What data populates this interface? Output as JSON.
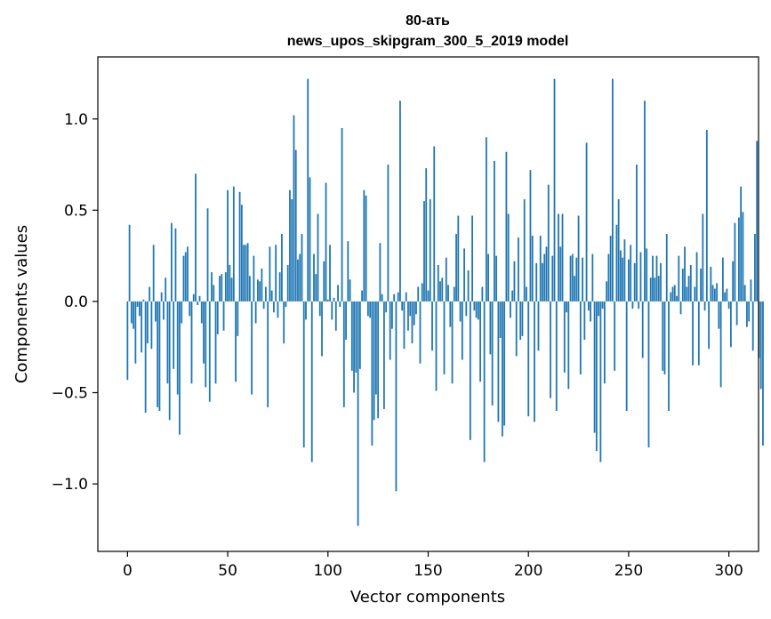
{
  "chart_data": {
    "type": "bar",
    "title_line1": "80-ать",
    "title_line2": "news_upos_skipgram_300_5_2019 model",
    "xlabel": "Vector components",
    "ylabel": "Components values",
    "xlim": [
      -14.8,
      314.8
    ],
    "ylim": [
      -1.37,
      1.34
    ],
    "x_ticks": [
      0,
      50,
      100,
      150,
      200,
      250,
      300
    ],
    "x_tick_labels": [
      "0",
      "50",
      "100",
      "150",
      "200",
      "250",
      "300"
    ],
    "y_ticks": [
      -1.0,
      -0.5,
      0.0,
      0.5,
      1.0
    ],
    "y_tick_labels": [
      "−1.0",
      "−0.5",
      "0.0",
      "0.5",
      "1.0"
    ],
    "bar_color": "#1f77b4",
    "grid": false,
    "values": [
      -0.43,
      0.42,
      -0.12,
      -0.15,
      -0.34,
      -0.03,
      -0.08,
      -0.28,
      0.01,
      -0.61,
      -0.23,
      0.08,
      -0.26,
      0.31,
      -0.11,
      -0.58,
      -0.6,
      0.05,
      -0.1,
      0.13,
      -0.45,
      -0.65,
      0.43,
      -0.37,
      0.4,
      -0.51,
      -0.73,
      -0.12,
      0.25,
      0.27,
      0.3,
      -0.08,
      -0.45,
      0.04,
      0.7,
      -0.02,
      0.03,
      -0.12,
      -0.34,
      -0.47,
      0.51,
      -0.55,
      0.16,
      0.09,
      -0.45,
      -0.18,
      0.14,
      0.15,
      -0.16,
      0.16,
      0.61,
      0.2,
      0.13,
      0.63,
      -0.44,
      -0.19,
      0.6,
      0.53,
      0.31,
      0.31,
      0.32,
      0.14,
      -0.51,
      0.25,
      -0.12,
      0.12,
      0.11,
      0.18,
      -0.04,
      0.08,
      -0.58,
      0.3,
      0.06,
      -0.06,
      0.31,
      -0.09,
      0.16,
      0.37,
      -0.23,
      -0.03,
      0.2,
      0.61,
      0.56,
      1.02,
      0.83,
      0.23,
      0.26,
      0.37,
      -0.8,
      -0.1,
      1.22,
      0.68,
      -0.88,
      0.26,
      0.15,
      0.48,
      -0.08,
      -0.3,
      0.22,
      0.65,
      0.01,
      0.31,
      -0.1,
      0.02,
      -0.16,
      0.09,
      -0.03,
      0.95,
      -0.58,
      -0.21,
      0.33,
      0.12,
      -0.38,
      -0.5,
      -0.39,
      -1.23,
      -0.37,
      0.06,
      0.61,
      0.58,
      -0.08,
      -0.09,
      -0.79,
      -0.65,
      -0.51,
      -0.64,
      0.32,
      0.04,
      -0.59,
      -0.06,
      0.75,
      -0.32,
      -0.15,
      0.04,
      -1.04,
      0.05,
      1.1,
      -0.05,
      -0.26,
      0.05,
      -0.16,
      -0.08,
      -0.23,
      -0.13,
      -0.07,
      0.08,
      -0.34,
      0.1,
      0.55,
      0.73,
      0.06,
      0.56,
      -0.27,
      0.85,
      -0.49,
      0.2,
      0.11,
      0.13,
      -0.4,
      0.24,
      0.09,
      -0.14,
      -0.45,
      0.08,
      0.37,
      0.47,
      -0.11,
      -0.32,
      0.29,
      -0.08,
      0.17,
      -0.76,
      0.47,
      -0.05,
      -0.09,
      -0.1,
      -0.44,
      0.08,
      -0.88,
      0.9,
      0.26,
      -0.29,
      -0.57,
      0.77,
      0.25,
      -0.66,
      -0.2,
      -0.74,
      -0.68,
      0.82,
      0.48,
      -0.09,
      0.06,
      0.22,
      -0.3,
      0.35,
      -0.21,
      -0.19,
      0.56,
      0.08,
      -0.63,
      0.72,
      0.36,
      -0.66,
      0.21,
      -0.27,
      0.36,
      0.21,
      0.26,
      0.3,
      0.64,
      -0.53,
      0.25,
      1.22,
      -0.6,
      0.48,
      0.3,
      0.48,
      -0.39,
      -0.06,
      -0.48,
      0.25,
      0.26,
      0.14,
      0.24,
      0.47,
      -0.4,
      0.24,
      -0.21,
      0.87,
      -0.05,
      -0.11,
      0.26,
      -0.72,
      -0.82,
      -0.08,
      -0.88,
      -0.04,
      -0.45,
      0.11,
      0.26,
      0.36,
      1.22,
      -0.38,
      0.42,
      0.56,
      0.28,
      0.24,
      0.34,
      -0.6,
      0.23,
      0.31,
      -0.04,
      0.21,
      0.75,
      -0.04,
      0.27,
      -0.31,
      1.1,
      0.29,
      -0.8,
      0.13,
      0.25,
      0.13,
      0.25,
      0.14,
      0.21,
      -0.38,
      -0.4,
      0.37,
      -0.6,
      0.05,
      0.08,
      0.09,
      0.03,
      0.25,
      -0.07,
      0.18,
      0.3,
      0.08,
      0.14,
      0.2,
      -0.35,
      0.08,
      0.27,
      -0.35,
      0.18,
      0.48,
      -0.05,
      0.94,
      -0.26,
      0.19,
      0.09,
      0.07,
      0.1,
      -0.15,
      -0.47,
      0.24,
      0.05,
      0.07,
      -0.04,
      -0.25,
      0.22,
      0.43,
      -0.13,
      0.46,
      0.63,
      0.49,
      0.09,
      -0.14,
      -0.11,
      0.12,
      -0.27,
      0.37,
      0.88,
      -0.31,
      -0.48,
      -0.79
    ]
  }
}
